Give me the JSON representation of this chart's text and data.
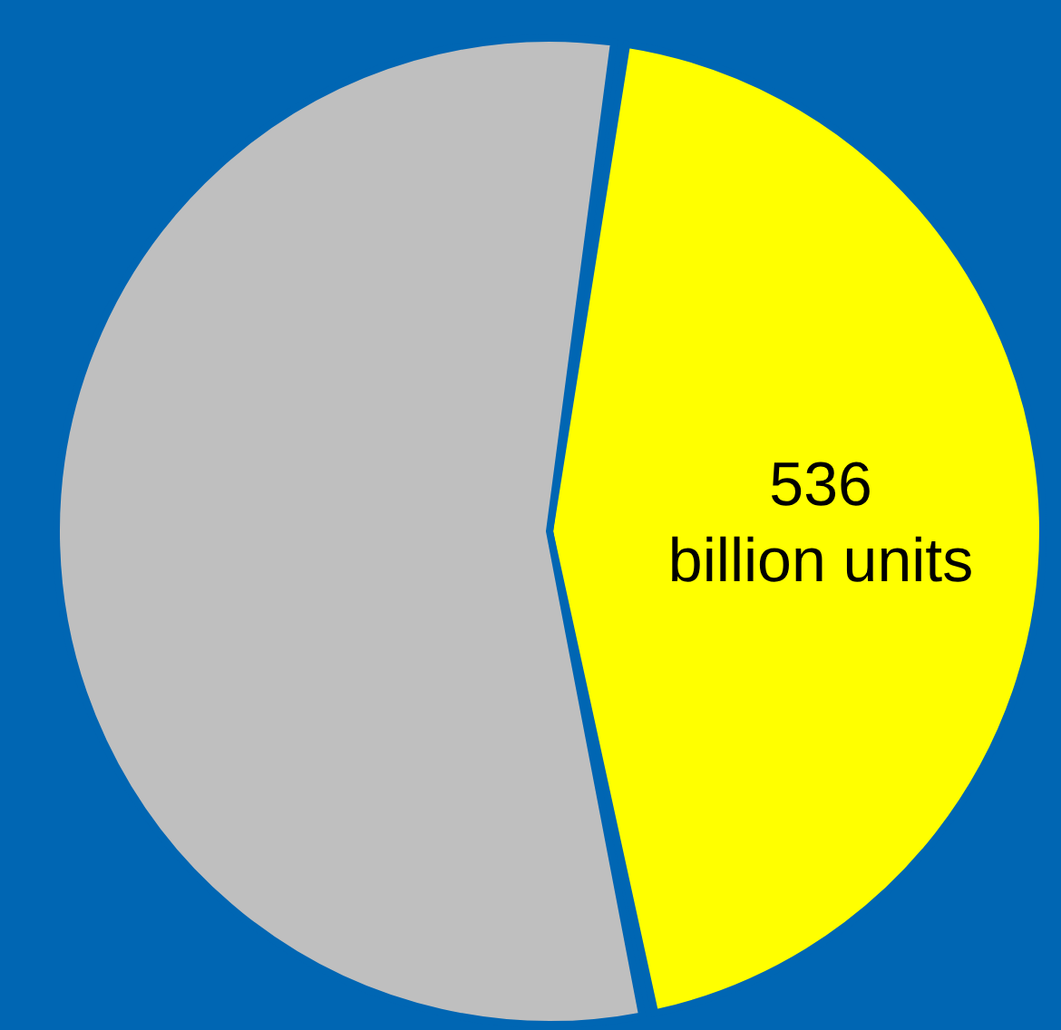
{
  "chart_data": {
    "type": "pie",
    "categories": [
      null,
      null
    ],
    "values": [
      536,
      670
    ],
    "colors": [
      "#ffff00",
      "#bfbfbf"
    ],
    "value_labels": [
      "536 billion units",
      null
    ],
    "legend": false
  }
}
